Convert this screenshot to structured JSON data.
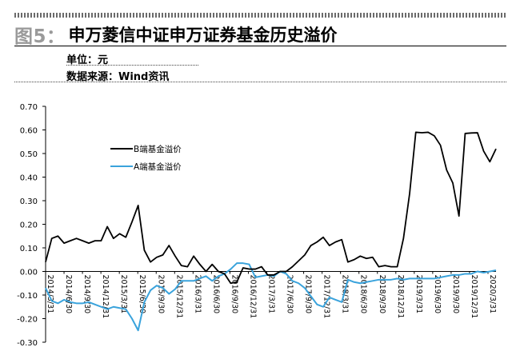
{
  "header": {
    "fig_label": "图5：",
    "title": "申万菱信中证申万证券基金历史溢价",
    "unit": "单位：元",
    "source": "数据来源：Wind资讯"
  },
  "colors": {
    "b_series": "#000000",
    "a_series": "#3aa3dc",
    "axis": "#000000"
  },
  "chart_data": {
    "type": "line",
    "title": "",
    "xlabel": "",
    "ylabel": "",
    "ylim": [
      -0.3,
      0.7
    ],
    "yticks": [
      -0.3,
      -0.2,
      -0.1,
      0.0,
      0.1,
      0.2,
      0.3,
      0.4,
      0.5,
      0.6,
      0.7
    ],
    "ytick_labels": [
      "-0.30",
      "-0.20",
      "-0.10",
      "0.00",
      "0.10",
      "0.20",
      "0.30",
      "0.40",
      "0.50",
      "0.60",
      "0.70"
    ],
    "xtick_labels": [
      "2014/3/31",
      "2014/6/30",
      "2014/9/30",
      "2014/12/31",
      "2015/3/31",
      "2015/6/30",
      "2015/9/30",
      "2015/12/31",
      "2016/3/31",
      "2016/6/30",
      "2016/9/30",
      "2016/12/31",
      "2017/3/31",
      "2017/6/30",
      "2017/9/30",
      "2017/12/31",
      "2018/3/31",
      "2018/6/30",
      "2018/9/30",
      "2018/12/31",
      "2019/3/31",
      "2019/6/30",
      "2019/9/30",
      "2019/12/31",
      "2020/3/31"
    ],
    "legend_position": "upper-left",
    "grid": false,
    "series": [
      {
        "name": "B端基金溢价",
        "values": [
          0.04,
          0.14,
          0.15,
          0.12,
          0.13,
          0.14,
          0.13,
          0.12,
          0.13,
          0.13,
          0.19,
          0.14,
          0.16,
          0.145,
          0.21,
          0.28,
          0.09,
          0.04,
          0.06,
          0.07,
          0.11,
          0.065,
          0.025,
          0.02,
          0.065,
          0.03,
          0.0,
          0.03,
          0.0,
          -0.01,
          -0.05,
          -0.045,
          0.015,
          0.01,
          0.01,
          0.02,
          -0.015,
          -0.015,
          0.0,
          0.0,
          0.02,
          0.045,
          0.07,
          0.11,
          0.125,
          0.145,
          0.11,
          0.125,
          0.135,
          0.04,
          0.05,
          0.065,
          0.055,
          0.06,
          0.02,
          0.025,
          0.02,
          0.02,
          0.14,
          0.33,
          0.59,
          0.588,
          0.59,
          0.575,
          0.535,
          0.43,
          0.375,
          0.235,
          0.585,
          0.587,
          0.588,
          0.51,
          0.465,
          0.52
        ]
      },
      {
        "name": "A端基金溢价",
        "values": [
          -0.07,
          -0.125,
          -0.135,
          -0.12,
          -0.13,
          -0.135,
          -0.135,
          -0.13,
          -0.14,
          -0.15,
          -0.16,
          -0.15,
          -0.155,
          -0.16,
          -0.2,
          -0.25,
          -0.13,
          -0.08,
          -0.06,
          -0.07,
          -0.095,
          -0.075,
          -0.04,
          -0.04,
          -0.04,
          -0.03,
          -0.02,
          -0.04,
          -0.02,
          -0.01,
          0.01,
          0.035,
          0.035,
          0.03,
          -0.025,
          -0.02,
          -0.015,
          -0.02,
          0.0,
          -0.01,
          -0.04,
          -0.05,
          -0.07,
          -0.105,
          -0.14,
          -0.15,
          -0.11,
          -0.12,
          -0.13,
          -0.035,
          -0.045,
          -0.05,
          -0.045,
          -0.04,
          -0.035,
          -0.035,
          -0.035,
          -0.03,
          -0.035,
          -0.03,
          -0.03,
          -0.03,
          -0.03,
          -0.03,
          -0.025,
          -0.02,
          -0.015,
          -0.015,
          -0.01,
          -0.01,
          0.0,
          -0.005,
          0.0,
          0.005
        ]
      }
    ]
  }
}
